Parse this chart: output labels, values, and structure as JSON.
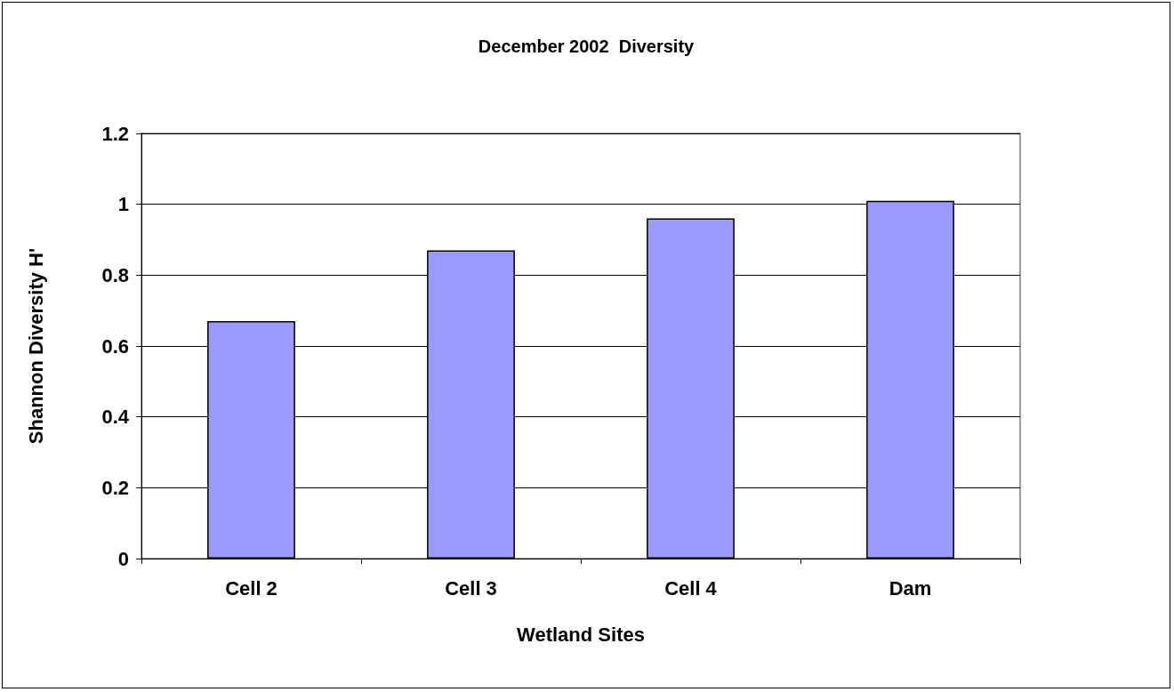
{
  "chart_data": {
    "type": "bar",
    "title": "December 2002  Diversity",
    "xlabel": "Wetland Sites",
    "ylabel": "Shannon Diversity H'",
    "categories": [
      "Cell 2",
      "Cell 3",
      "Cell 4",
      "Dam"
    ],
    "values": [
      0.67,
      0.87,
      0.96,
      1.01
    ],
    "color": "#9999ff",
    "ylim": [
      0,
      1.2
    ],
    "yticks": [
      0,
      0.2,
      0.4,
      0.6,
      0.8,
      1,
      1.2
    ],
    "grid": "y"
  }
}
